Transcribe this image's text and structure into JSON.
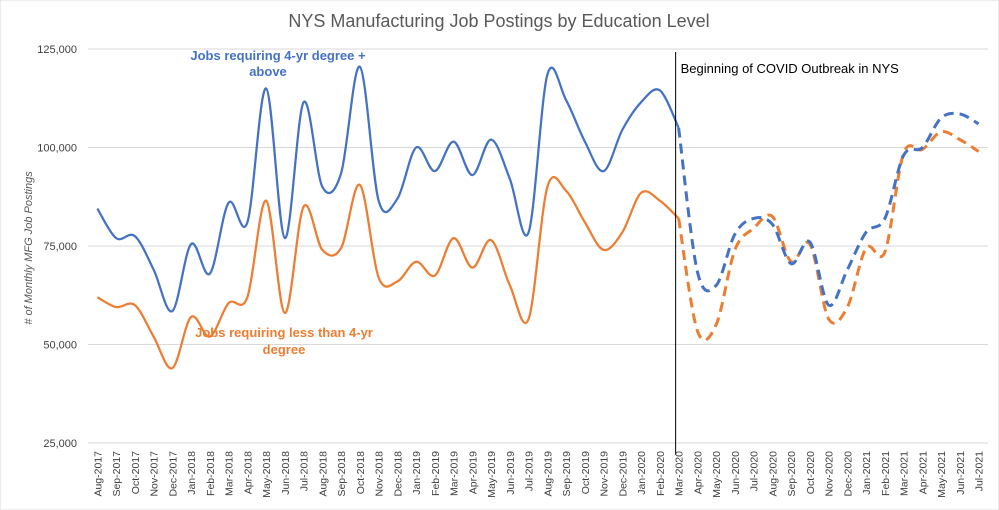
{
  "chart_data": {
    "type": "line",
    "title": "NYS Manufacturing Job Postings by Education Level",
    "ylabel": "# of Monthly MFG Job Postings",
    "xlabel": "",
    "ylim": [
      25000,
      125000
    ],
    "yticks": [
      25000,
      50000,
      75000,
      100000,
      125000
    ],
    "ytick_labels": [
      "25,000",
      "50,000",
      "75,000",
      "100,000",
      "125,000"
    ],
    "grid": true,
    "categories": [
      "Aug-2017",
      "Sep-2017",
      "Oct-2017",
      "Nov-2017",
      "Dec-2017",
      "Jan-2018",
      "Feb-2018",
      "Mar-2018",
      "Apr-2018",
      "May-2018",
      "Jun-2018",
      "Jul-2018",
      "Aug-2018",
      "Sep-2018",
      "Oct-2018",
      "Nov-2018",
      "Dec-2018",
      "Jan-2019",
      "Feb-2019",
      "Mar-2019",
      "Apr-2019",
      "May-2019",
      "Jun-2019",
      "Jul-2019",
      "Aug-2019",
      "Sep-2019",
      "Oct-2019",
      "Nov-2019",
      "Dec-2019",
      "Jan-2020",
      "Feb-2020",
      "Mar-2020",
      "Apr-2020",
      "May-2020",
      "Jun-2020",
      "Jul-2020",
      "Aug-2020",
      "Sep-2020",
      "Oct-2020",
      "Nov-2020",
      "Dec-2020",
      "Jan-2021",
      "Feb-2021",
      "Mar-2021",
      "Apr-2021",
      "May-2021",
      "Jun-2021",
      "Jul-2021"
    ],
    "solid_until": "Mar-2020",
    "series": [
      {
        "name": "Jobs requiring 4-yr degree + above",
        "color": "#4472C4",
        "values": [
          84500,
          77000,
          77500,
          69000,
          58500,
          75500,
          68000,
          86000,
          81000,
          115000,
          77000,
          111500,
          90000,
          93500,
          120500,
          86500,
          87000,
          100000,
          94000,
          101500,
          93000,
          102000,
          92000,
          78500,
          118500,
          112000,
          101500,
          94000,
          104500,
          111500,
          114500,
          105000,
          68500,
          65000,
          78000,
          82000,
          80500,
          70500,
          76000,
          60000,
          69000,
          78500,
          82000,
          98000,
          100000,
          107500,
          108500,
          106000
        ]
      },
      {
        "name": "Jobs requiring less than 4-yr degree",
        "color": "#ED7D31",
        "values": [
          62000,
          59500,
          60000,
          52000,
          44000,
          57000,
          52000,
          60500,
          62000,
          86500,
          58000,
          85000,
          74000,
          74500,
          90500,
          67000,
          66000,
          71000,
          67500,
          77000,
          69500,
          76500,
          65000,
          56500,
          90000,
          89000,
          81000,
          74000,
          78500,
          88500,
          86500,
          82000,
          53500,
          55000,
          74000,
          79500,
          82500,
          71000,
          75500,
          56500,
          59500,
          74500,
          73500,
          98500,
          99500,
          104000,
          102000,
          99000
        ]
      }
    ],
    "annotations": [
      {
        "text_line1": "Jobs requiring 4-yr degree +",
        "text_line2": "above",
        "color": "#4472C4"
      },
      {
        "text_line1": "Jobs requiring less than 4-yr",
        "text_line2": "degree",
        "color": "#ED7D31"
      },
      {
        "text": "Beginning of COVID Outbreak in NYS",
        "at_category": "Mar-2020"
      }
    ]
  }
}
